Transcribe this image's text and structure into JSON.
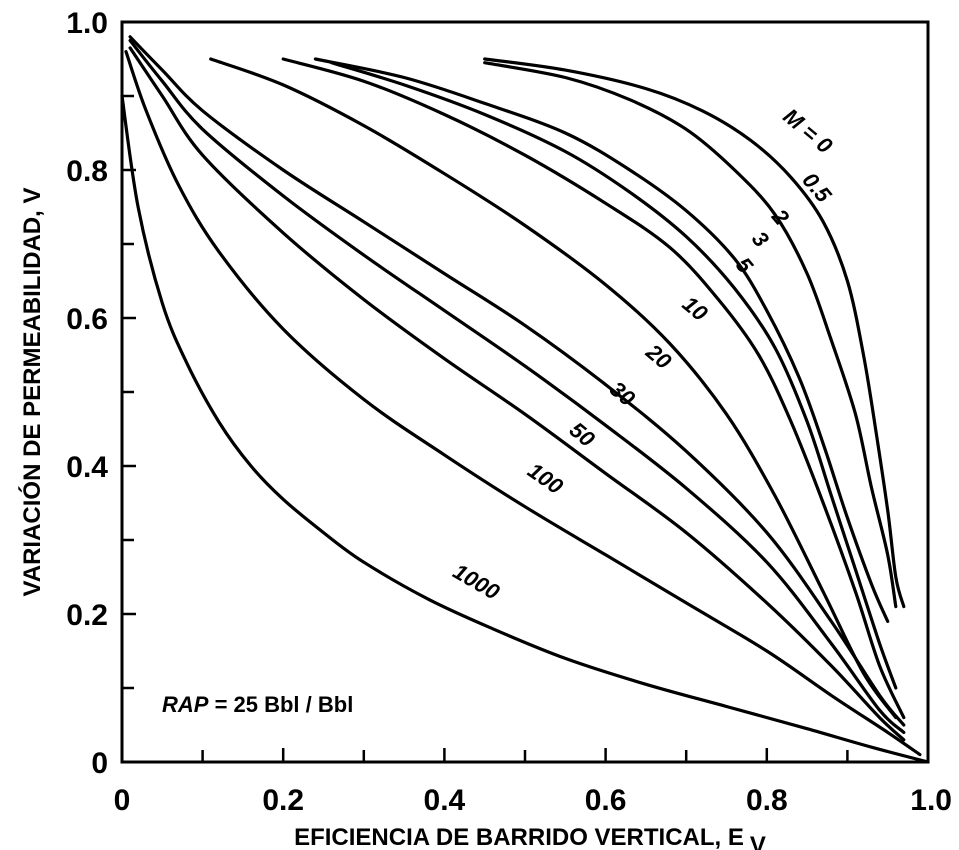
{
  "chart_data": {
    "type": "line",
    "xlabel": "EFICIENCIA DE BARRIDO VERTICAL, E",
    "xlabel_sub": "V",
    "ylabel": "VARIACIÓN DE PERMEABILIDAD, V",
    "xlim": [
      0,
      1.0
    ],
    "ylim": [
      0,
      1.0
    ],
    "x_ticks": [
      "0",
      "0.2",
      "0.4",
      "0.6",
      "0.8",
      "1.0"
    ],
    "y_ticks": [
      "0",
      "0.2",
      "0.4",
      "0.6",
      "0.8",
      "1.0"
    ],
    "grid": false,
    "annotation": {
      "italic": "RAP",
      "rest": " = 25 Bbl / Bbl"
    },
    "series": [
      {
        "label": "M = 0",
        "points": [
          [
            0.45,
            0.95
          ],
          [
            0.55,
            0.935
          ],
          [
            0.65,
            0.91
          ],
          [
            0.72,
            0.88
          ],
          [
            0.78,
            0.84
          ],
          [
            0.83,
            0.79
          ],
          [
            0.87,
            0.73
          ],
          [
            0.9,
            0.65
          ],
          [
            0.92,
            0.55
          ],
          [
            0.935,
            0.45
          ],
          [
            0.95,
            0.34
          ],
          [
            0.96,
            0.25
          ],
          [
            0.97,
            0.21
          ]
        ]
      },
      {
        "label": "0.5",
        "points": [
          [
            0.45,
            0.945
          ],
          [
            0.55,
            0.925
          ],
          [
            0.63,
            0.895
          ],
          [
            0.7,
            0.855
          ],
          [
            0.76,
            0.8
          ],
          [
            0.81,
            0.74
          ],
          [
            0.85,
            0.66
          ],
          [
            0.88,
            0.57
          ],
          [
            0.91,
            0.47
          ],
          [
            0.93,
            0.37
          ],
          [
            0.95,
            0.28
          ],
          [
            0.96,
            0.21
          ]
        ]
      },
      {
        "label": "2",
        "points": [
          [
            0.24,
            0.95
          ],
          [
            0.35,
            0.925
          ],
          [
            0.45,
            0.89
          ],
          [
            0.55,
            0.85
          ],
          [
            0.63,
            0.8
          ],
          [
            0.7,
            0.745
          ],
          [
            0.76,
            0.68
          ],
          [
            0.8,
            0.61
          ],
          [
            0.84,
            0.52
          ],
          [
            0.87,
            0.43
          ],
          [
            0.9,
            0.33
          ],
          [
            0.93,
            0.24
          ],
          [
            0.95,
            0.19
          ]
        ]
      },
      {
        "label": "3",
        "points": [
          [
            0.26,
            0.945
          ],
          [
            0.35,
            0.915
          ],
          [
            0.45,
            0.875
          ],
          [
            0.55,
            0.825
          ],
          [
            0.63,
            0.77
          ],
          [
            0.7,
            0.71
          ],
          [
            0.76,
            0.64
          ],
          [
            0.81,
            0.56
          ],
          [
            0.85,
            0.46
          ],
          [
            0.88,
            0.36
          ],
          [
            0.91,
            0.26
          ],
          [
            0.94,
            0.16
          ],
          [
            0.96,
            0.1
          ]
        ]
      },
      {
        "label": "5",
        "points": [
          [
            0.2,
            0.95
          ],
          [
            0.3,
            0.92
          ],
          [
            0.4,
            0.875
          ],
          [
            0.5,
            0.82
          ],
          [
            0.6,
            0.755
          ],
          [
            0.68,
            0.695
          ],
          [
            0.74,
            0.625
          ],
          [
            0.79,
            0.55
          ],
          [
            0.83,
            0.46
          ],
          [
            0.87,
            0.35
          ],
          [
            0.91,
            0.23
          ],
          [
            0.94,
            0.13
          ],
          [
            0.97,
            0.06
          ]
        ]
      },
      {
        "label": "10",
        "points": [
          [
            0.11,
            0.95
          ],
          [
            0.2,
            0.915
          ],
          [
            0.3,
            0.86
          ],
          [
            0.4,
            0.795
          ],
          [
            0.5,
            0.725
          ],
          [
            0.6,
            0.645
          ],
          [
            0.68,
            0.565
          ],
          [
            0.75,
            0.47
          ],
          [
            0.81,
            0.36
          ],
          [
            0.87,
            0.23
          ],
          [
            0.92,
            0.12
          ],
          [
            0.96,
            0.06
          ]
        ]
      },
      {
        "label": "20",
        "points": [
          [
            0.01,
            0.98
          ],
          [
            0.05,
            0.935
          ],
          [
            0.1,
            0.88
          ],
          [
            0.2,
            0.8
          ],
          [
            0.3,
            0.73
          ],
          [
            0.4,
            0.66
          ],
          [
            0.5,
            0.59
          ],
          [
            0.6,
            0.51
          ],
          [
            0.7,
            0.42
          ],
          [
            0.8,
            0.31
          ],
          [
            0.88,
            0.19
          ],
          [
            0.94,
            0.09
          ],
          [
            0.97,
            0.05
          ]
        ]
      },
      {
        "label": "30",
        "points": [
          [
            0.01,
            0.975
          ],
          [
            0.05,
            0.92
          ],
          [
            0.1,
            0.855
          ],
          [
            0.2,
            0.765
          ],
          [
            0.3,
            0.685
          ],
          [
            0.4,
            0.61
          ],
          [
            0.5,
            0.535
          ],
          [
            0.6,
            0.455
          ],
          [
            0.7,
            0.37
          ],
          [
            0.8,
            0.27
          ],
          [
            0.88,
            0.16
          ],
          [
            0.94,
            0.07
          ],
          [
            0.97,
            0.04
          ]
        ]
      },
      {
        "label": "50",
        "points": [
          [
            0.01,
            0.965
          ],
          [
            0.05,
            0.9
          ],
          [
            0.1,
            0.82
          ],
          [
            0.2,
            0.715
          ],
          [
            0.3,
            0.625
          ],
          [
            0.4,
            0.545
          ],
          [
            0.5,
            0.47
          ],
          [
            0.6,
            0.39
          ],
          [
            0.7,
            0.31
          ],
          [
            0.8,
            0.215
          ],
          [
            0.88,
            0.13
          ],
          [
            0.94,
            0.06
          ],
          [
            0.97,
            0.03
          ]
        ]
      },
      {
        "label": "100",
        "points": [
          [
            0.005,
            0.96
          ],
          [
            0.03,
            0.88
          ],
          [
            0.07,
            0.78
          ],
          [
            0.12,
            0.69
          ],
          [
            0.2,
            0.585
          ],
          [
            0.3,
            0.49
          ],
          [
            0.4,
            0.415
          ],
          [
            0.5,
            0.345
          ],
          [
            0.6,
            0.28
          ],
          [
            0.7,
            0.215
          ],
          [
            0.8,
            0.15
          ],
          [
            0.88,
            0.09
          ],
          [
            0.95,
            0.04
          ],
          [
            0.99,
            0.01
          ]
        ]
      },
      {
        "label": "1000",
        "points": [
          [
            0.0,
            0.9
          ],
          [
            0.02,
            0.75
          ],
          [
            0.05,
            0.62
          ],
          [
            0.08,
            0.54
          ],
          [
            0.12,
            0.46
          ],
          [
            0.16,
            0.4
          ],
          [
            0.2,
            0.355
          ],
          [
            0.25,
            0.31
          ],
          [
            0.3,
            0.27
          ],
          [
            0.38,
            0.22
          ],
          [
            0.46,
            0.18
          ],
          [
            0.55,
            0.14
          ],
          [
            0.65,
            0.105
          ],
          [
            0.75,
            0.075
          ],
          [
            0.85,
            0.045
          ],
          [
            0.93,
            0.02
          ],
          [
            1.0,
            0.0
          ]
        ]
      }
    ]
  }
}
